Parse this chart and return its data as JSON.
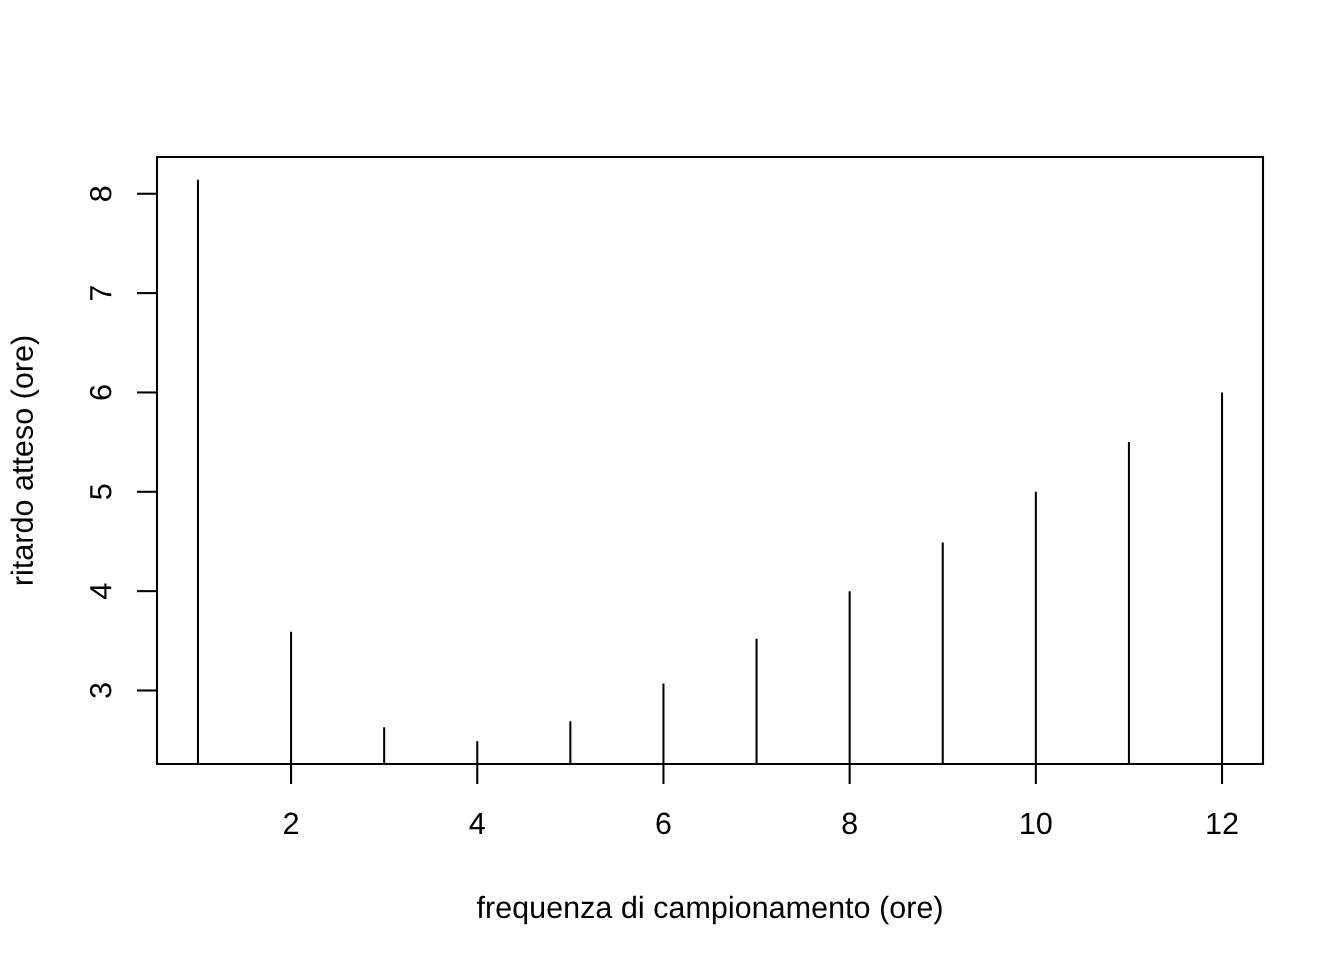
{
  "chart_data": {
    "type": "bar",
    "xlabel": "frequenza di campionamento (ore)",
    "ylabel": "ritardo atteso (ore)",
    "x": [
      1,
      2,
      3,
      4,
      5,
      6,
      7,
      8,
      9,
      10,
      11,
      12
    ],
    "values": [
      8.14,
      3.59,
      2.63,
      2.49,
      2.69,
      3.07,
      3.52,
      4.0,
      4.49,
      5.0,
      5.5,
      6.0
    ],
    "color": "#000000",
    "xlim": [
      0.56,
      12.44
    ],
    "ylim": [
      2.26,
      8.37
    ],
    "xticks": [
      2,
      4,
      6,
      8,
      10,
      12
    ],
    "yticks": [
      3,
      4,
      5,
      6,
      7,
      8
    ]
  }
}
